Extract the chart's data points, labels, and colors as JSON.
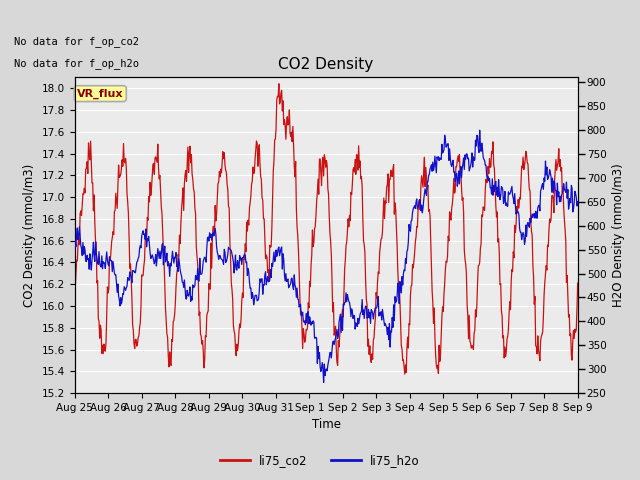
{
  "title": "CO2 Density",
  "xlabel": "Time",
  "ylabel_left": "CO2 Density (mmol/m3)",
  "ylabel_right": "H2O Density (mmol/m3)",
  "text_no_data_1": "No data for f_op_co2",
  "text_no_data_2": "No data for f_op_h2o",
  "legend_box_label": "VR_flux",
  "legend_box_color": "#ffff99",
  "legend_box_edge": "#aaaaaa",
  "legend_box_text_color": "#880000",
  "ylim_left": [
    15.2,
    18.1
  ],
  "ylim_right": [
    250,
    910
  ],
  "yticks_left": [
    15.2,
    15.4,
    15.6,
    15.8,
    16.0,
    16.2,
    16.4,
    16.6,
    16.8,
    17.0,
    17.2,
    17.4,
    17.6,
    17.8,
    18.0
  ],
  "yticks_right": [
    250,
    300,
    350,
    400,
    450,
    500,
    550,
    600,
    650,
    700,
    750,
    800,
    850,
    900
  ],
  "color_co2": "#cc1111",
  "color_h2o": "#1111cc",
  "bg_color": "#d8d8d8",
  "plot_bg": "#ebebeb",
  "grid_color": "#ffffff",
  "linewidth": 0.9,
  "xlim": [
    0,
    360
  ],
  "xtick_labels": [
    "Aug 25",
    "Aug 26",
    "Aug 27",
    "Aug 28",
    "Aug 29",
    "Aug 30",
    "Aug 31",
    "Sep 1",
    "Sep 2",
    "Sep 3",
    "Sep 4",
    "Sep 5",
    "Sep 6",
    "Sep 7",
    "Sep 8",
    "Sep 9"
  ],
  "xtick_positions": [
    0,
    24,
    48,
    72,
    96,
    120,
    144,
    168,
    192,
    216,
    240,
    264,
    288,
    312,
    336,
    360
  ]
}
